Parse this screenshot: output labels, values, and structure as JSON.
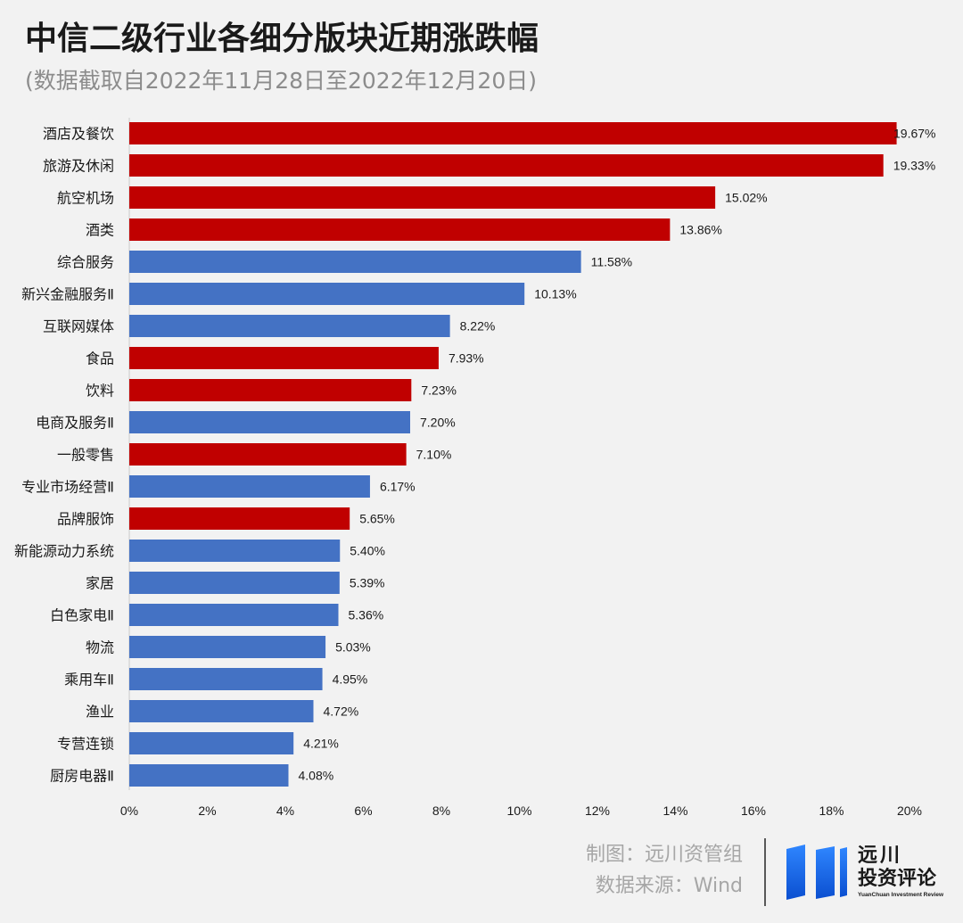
{
  "colors": {
    "background": "#f2f2f2",
    "bar_red": "#c00000",
    "bar_blue": "#4472c4",
    "axis": "#d0d0d0",
    "footer_text": "#a6a6a6",
    "logo_blue": "#1565e0"
  },
  "chart_data": {
    "type": "bar",
    "orientation": "horizontal",
    "title": "中信二级行业各细分版块近期涨跌幅",
    "subtitle": "(数据截取自2022年11月28日至2022年12月20日)",
    "xlabel": "",
    "ylabel": "",
    "categories": [
      "酒店及餐饮",
      "旅游及休闲",
      "航空机场",
      "酒类",
      "综合服务",
      "新兴金融服务Ⅱ",
      "互联网媒体",
      "食品",
      "饮料",
      "电商及服务Ⅱ",
      "一般零售",
      "专业市场经营Ⅱ",
      "品牌服饰",
      "新能源动力系统",
      "家居",
      "白色家电Ⅱ",
      "物流",
      "乘用车Ⅱ",
      "渔业",
      "专营连锁",
      "厨房电器Ⅱ"
    ],
    "values": [
      19.67,
      19.33,
      15.02,
      13.86,
      11.58,
      10.13,
      8.22,
      7.93,
      7.23,
      7.2,
      7.1,
      6.17,
      5.65,
      5.4,
      5.39,
      5.36,
      5.03,
      4.95,
      4.72,
      4.21,
      4.08
    ],
    "value_labels": [
      "19.67%",
      "19.33%",
      "15.02%",
      "13.86%",
      "11.58%",
      "10.13%",
      "8.22%",
      "7.93%",
      "7.23%",
      "7.20%",
      "7.10%",
      "6.17%",
      "5.65%",
      "5.40%",
      "5.39%",
      "5.36%",
      "5.03%",
      "4.95%",
      "4.72%",
      "4.21%",
      "4.08%"
    ],
    "bar_colors": [
      "#c00000",
      "#c00000",
      "#c00000",
      "#c00000",
      "#4472c4",
      "#4472c4",
      "#4472c4",
      "#c00000",
      "#c00000",
      "#4472c4",
      "#c00000",
      "#4472c4",
      "#c00000",
      "#4472c4",
      "#4472c4",
      "#4472c4",
      "#4472c4",
      "#4472c4",
      "#4472c4",
      "#4472c4",
      "#4472c4"
    ],
    "xlim": [
      0,
      20
    ],
    "xticks": [
      0,
      2,
      4,
      6,
      8,
      10,
      12,
      14,
      16,
      18,
      20
    ],
    "xtick_labels": [
      "0%",
      "2%",
      "4%",
      "6%",
      "8%",
      "10%",
      "12%",
      "14%",
      "16%",
      "18%",
      "20%"
    ],
    "grid": false,
    "legend": "none"
  },
  "footer": {
    "credit": "制图：远川资管组",
    "source": "数据来源：Wind"
  },
  "logo": {
    "name_line1": "远川",
    "name_line2": "投资评论",
    "tagline": "YuanChuan Investment Review"
  }
}
